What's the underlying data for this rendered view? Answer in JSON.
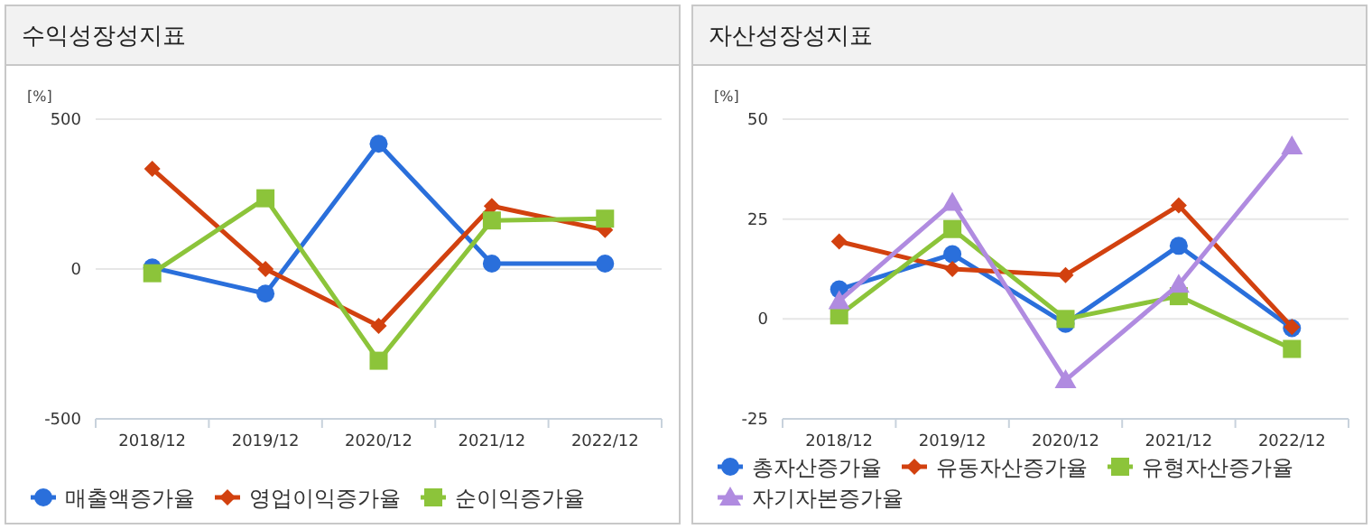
{
  "chart_data": [
    {
      "type": "line",
      "title": "수익성장성지표",
      "ylabel": "[%]",
      "categories": [
        "2018/12",
        "2019/12",
        "2020/12",
        "2021/12",
        "2022/12"
      ],
      "ylim": [
        -500,
        500
      ],
      "yticks": [
        -500,
        0,
        500
      ],
      "grid": "y",
      "legend": "bottom",
      "series": [
        {
          "name": "매출액증가율",
          "color": "#2a6fdb",
          "marker": "circle",
          "values": [
            5,
            -82,
            418,
            18,
            18
          ]
        },
        {
          "name": "영업이익증가율",
          "color": "#d2410f",
          "marker": "diamond",
          "values": [
            334,
            0,
            -190,
            210,
            130
          ]
        },
        {
          "name": "순이익증가율",
          "color": "#8cc43a",
          "marker": "square",
          "values": [
            -14,
            236,
            -306,
            162,
            168
          ]
        }
      ]
    },
    {
      "type": "line",
      "title": "자산성장성지표",
      "ylabel": "[%]",
      "categories": [
        "2018/12",
        "2019/12",
        "2020/12",
        "2021/12",
        "2022/12"
      ],
      "ylim": [
        -25,
        50
      ],
      "yticks": [
        -25,
        0,
        25,
        50
      ],
      "grid": "y",
      "legend": "bottom",
      "series": [
        {
          "name": "총자산증가율",
          "color": "#2a6fdb",
          "marker": "circle",
          "values": [
            7.4,
            16.2,
            -1.2,
            18.3,
            -2.3
          ]
        },
        {
          "name": "유동자산증가율",
          "color": "#d2410f",
          "marker": "diamond",
          "values": [
            19.4,
            12.5,
            11.0,
            28.4,
            -2.0
          ]
        },
        {
          "name": "유형자산증가율",
          "color": "#8cc43a",
          "marker": "square",
          "values": [
            0.9,
            22.5,
            0,
            5.7,
            -7.5
          ]
        },
        {
          "name": "자기자본증가율",
          "color": "#b08be0",
          "marker": "triangle",
          "values": [
            4.5,
            29.1,
            -15.3,
            8.6,
            43.2
          ]
        }
      ]
    }
  ]
}
